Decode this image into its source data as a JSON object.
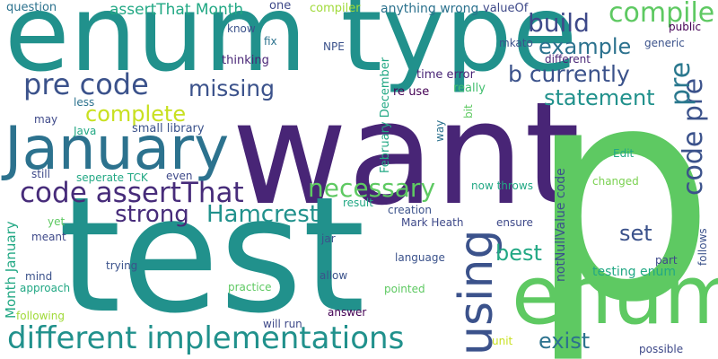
{
  "cloud": {
    "background": "#ffffff",
    "words": [
      {
        "text": "want",
        "color": "#482576"
      },
      {
        "text": "p",
        "color": "#5ec962"
      },
      {
        "text": "test",
        "color": "#21918c"
      },
      {
        "text": "enum type",
        "color": "#21918c"
      },
      {
        "text": "enum",
        "color": "#5ec962"
      },
      {
        "text": "January",
        "color": "#2c728e"
      },
      {
        "text": "using",
        "color": "#3b528b"
      },
      {
        "text": "different implementations",
        "color": "#21918c"
      },
      {
        "text": "code assertThat",
        "color": "#472c7a"
      },
      {
        "text": "pre code",
        "color": "#3b528b"
      },
      {
        "text": "code pre",
        "color": "#3b528b"
      },
      {
        "text": "compile",
        "color": "#5ec962"
      },
      {
        "text": "build",
        "color": "#3e4989"
      },
      {
        "text": "example",
        "color": "#2c728e"
      },
      {
        "text": "b currently",
        "color": "#3b528b"
      },
      {
        "text": "pre",
        "color": "#2a788e"
      },
      {
        "text": "missing",
        "color": "#3b528b"
      },
      {
        "text": "statement",
        "color": "#21918c"
      },
      {
        "text": "complete",
        "color": "#c8e020"
      },
      {
        "text": "necessary",
        "color": "#5ec962"
      },
      {
        "text": "strong",
        "color": "#472c7a"
      },
      {
        "text": "Hamcrest",
        "color": "#21918c"
      },
      {
        "text": "best",
        "color": "#22a884"
      },
      {
        "text": "set",
        "color": "#3b528b"
      },
      {
        "text": "exist",
        "color": "#2c728e"
      },
      {
        "text": "assertThat Month",
        "color": "#22a884"
      },
      {
        "text": "anything wrong",
        "color": "#2c728e"
      },
      {
        "text": "question",
        "color": "#2c728e"
      },
      {
        "text": "know",
        "color": "#3b528b"
      },
      {
        "text": "one",
        "color": "#3e4989"
      },
      {
        "text": "compiler",
        "color": "#a0da39"
      },
      {
        "text": "valueOf",
        "color": "#3e4989"
      },
      {
        "text": "fix",
        "color": "#2c728e"
      },
      {
        "text": "generic",
        "color": "#3b528b"
      },
      {
        "text": "public",
        "color": "#440154"
      },
      {
        "text": "NPE",
        "color": "#3b528b"
      },
      {
        "text": "mkato",
        "color": "#3b528b"
      },
      {
        "text": "thinking",
        "color": "#482576"
      },
      {
        "text": "different",
        "color": "#482576"
      },
      {
        "text": "time error",
        "color": "#482576"
      },
      {
        "text": "re use",
        "color": "#440154"
      },
      {
        "text": "really",
        "color": "#44bf70"
      },
      {
        "text": "less",
        "color": "#2c728e"
      },
      {
        "text": "may",
        "color": "#3e4989"
      },
      {
        "text": "Java",
        "color": "#22a884"
      },
      {
        "text": "small library",
        "color": "#3b528b"
      },
      {
        "text": "February December",
        "color": "#22a884"
      },
      {
        "text": "bit",
        "color": "#5ec962"
      },
      {
        "text": "way",
        "color": "#2c728e"
      },
      {
        "text": "notNullValue code",
        "color": "#3b528b"
      },
      {
        "text": "Edit",
        "color": "#22a884"
      },
      {
        "text": "changed",
        "color": "#7ad151"
      },
      {
        "text": "still",
        "color": "#3e4989"
      },
      {
        "text": "seperate TCK",
        "color": "#22a884"
      },
      {
        "text": "even",
        "color": "#3e4989"
      },
      {
        "text": "now throws",
        "color": "#22a884"
      },
      {
        "text": "result",
        "color": "#22a884"
      },
      {
        "text": "creation",
        "color": "#3b528b"
      },
      {
        "text": "Mark Heath",
        "color": "#3e4989"
      },
      {
        "text": "ensure",
        "color": "#3e4989"
      },
      {
        "text": "Month January",
        "color": "#22a884"
      },
      {
        "text": "yet",
        "color": "#5ec962"
      },
      {
        "text": "meant",
        "color": "#3e4989"
      },
      {
        "text": "jar",
        "color": "#3b528b"
      },
      {
        "text": "follows",
        "color": "#3b528b"
      },
      {
        "text": "part",
        "color": "#3e4989"
      },
      {
        "text": "language",
        "color": "#3b528b"
      },
      {
        "text": "testing enum",
        "color": "#22a884"
      },
      {
        "text": "mind",
        "color": "#3b528b"
      },
      {
        "text": "trying",
        "color": "#3b528b"
      },
      {
        "text": "allow",
        "color": "#3b528b"
      },
      {
        "text": "approach",
        "color": "#22a884"
      },
      {
        "text": "practice",
        "color": "#5ec962"
      },
      {
        "text": "pointed",
        "color": "#5ec962"
      },
      {
        "text": "answer",
        "color": "#440154"
      },
      {
        "text": "following",
        "color": "#a0da39"
      },
      {
        "text": "will run",
        "color": "#3e4989"
      },
      {
        "text": "unit",
        "color": "#c8e020"
      },
      {
        "text": "possible",
        "color": "#3e4989"
      }
    ]
  }
}
